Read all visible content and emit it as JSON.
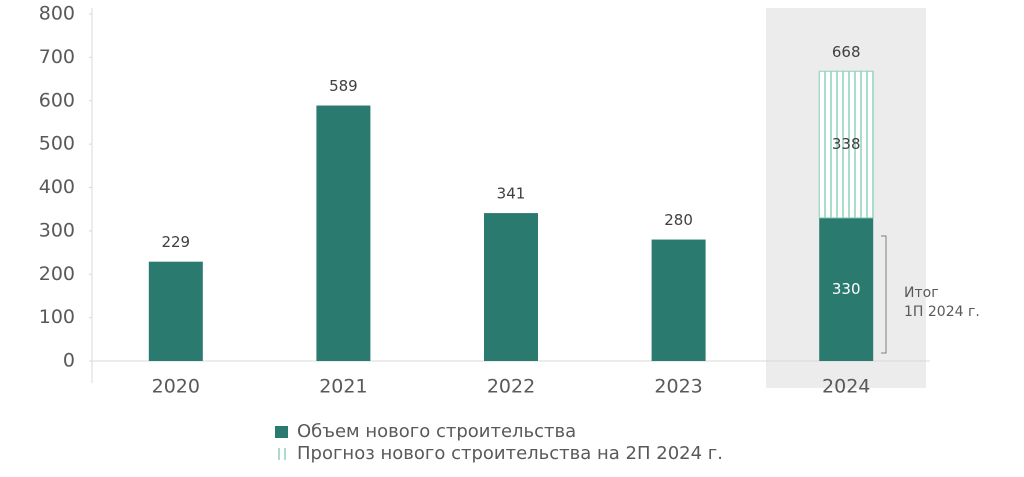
{
  "chart_data": {
    "type": "stacked-bar",
    "categories": [
      "2020",
      "2021",
      "2022",
      "2023",
      "2024"
    ],
    "series": [
      {
        "name": "Объем нового строительства",
        "color": "#2b7a6f",
        "values": [
          229,
          589,
          341,
          280,
          330
        ]
      },
      {
        "name": "Прогноз нового строительства на 2П 2024 г.",
        "color": "#8fd4b8",
        "values": [
          null,
          null,
          null,
          null,
          338
        ]
      }
    ],
    "totals": [
      null,
      null,
      null,
      null,
      668
    ],
    "annotation": [
      "Итог",
      "1П 2024 г."
    ],
    "ylim": [
      0,
      800
    ],
    "yticks": [
      0,
      100,
      200,
      300,
      400,
      500,
      600,
      700,
      800
    ]
  }
}
